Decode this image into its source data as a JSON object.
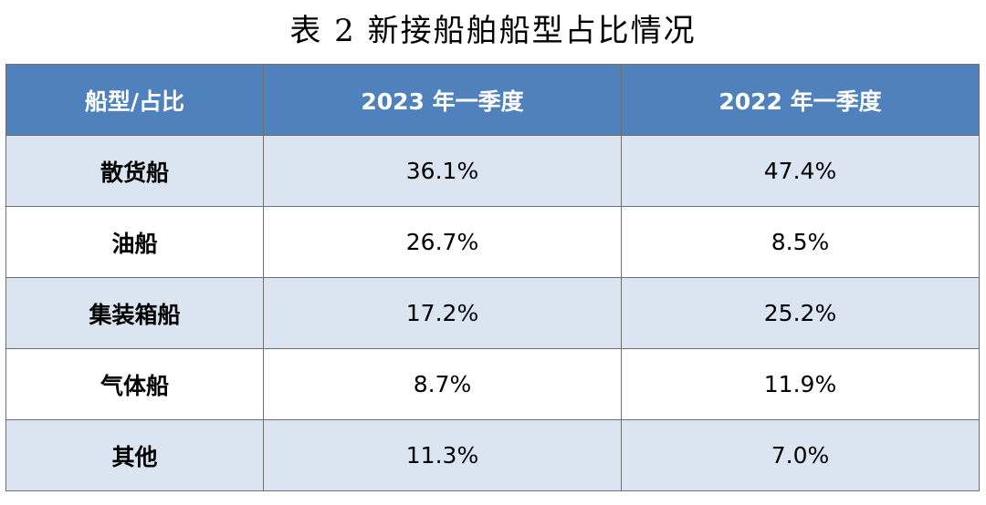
{
  "title": "表 2  新接船舶船型占比情况",
  "table": {
    "headers": [
      "船型/占比",
      "2023 年一季度",
      "2022 年一季度"
    ],
    "rows": [
      {
        "type": "散货船",
        "q1_2023": "36.1%",
        "q1_2022": "47.4%"
      },
      {
        "type": "油船",
        "q1_2023": "26.7%",
        "q1_2022": "8.5%"
      },
      {
        "type": "集装箱船",
        "q1_2023": "17.2%",
        "q1_2022": "25.2%"
      },
      {
        "type": "气体船",
        "q1_2023": "8.7%",
        "q1_2022": "11.9%"
      },
      {
        "type": "其他",
        "q1_2023": "11.3%",
        "q1_2022": "7.0%"
      }
    ]
  },
  "colors": {
    "header_bg": "#4f81bd",
    "header_text": "#ffffff",
    "alt_row_bg": "#dbe5f1",
    "plain_row_bg": "#ffffff",
    "border": "#6f6f6f"
  }
}
